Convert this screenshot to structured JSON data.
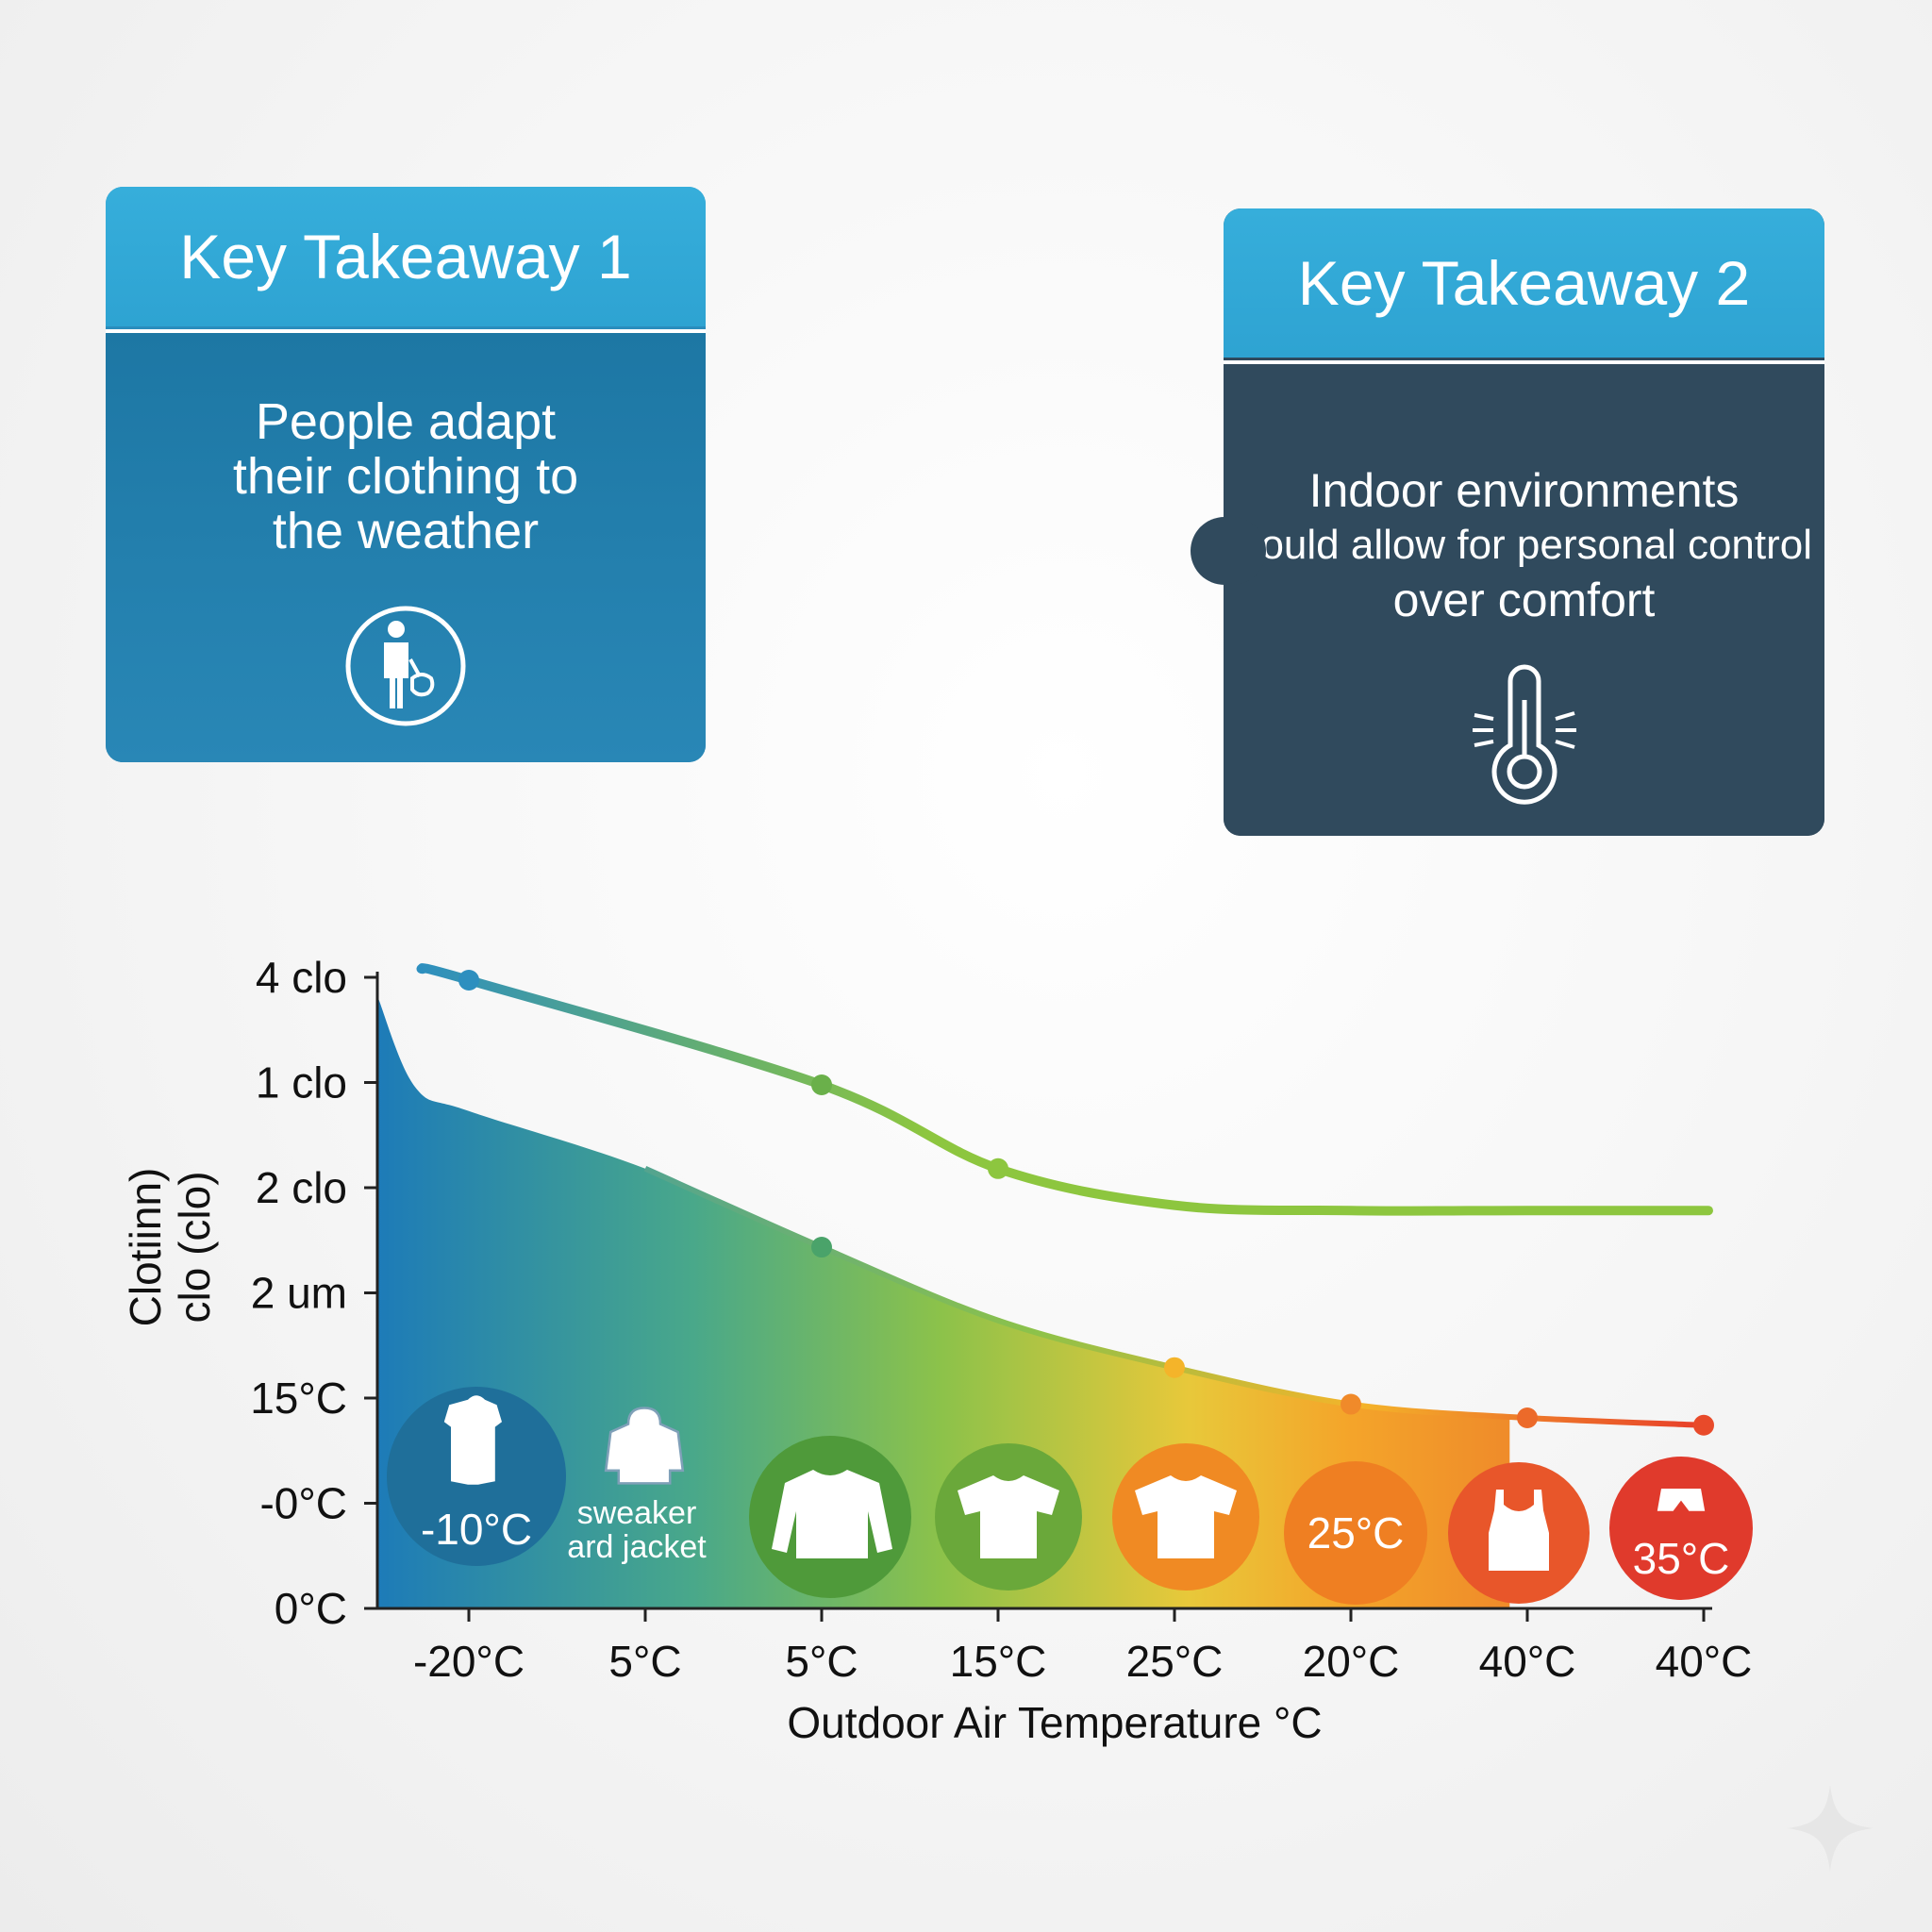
{
  "cards": [
    {
      "title": "Key Takeaway 1",
      "lines": [
        "People adapt",
        "their clothing to",
        "the weather"
      ],
      "icon": "person-with-bag-icon",
      "header_color": "#33aad8",
      "body_color": "#2080ad"
    },
    {
      "title": "Key Takeaway 2",
      "lines": [
        "Indoor environments",
        "should allow for personal control",
        "over comfort"
      ],
      "icon": "thermometer-icon",
      "header_color": "#33aad8",
      "body_color": "#304a5d"
    }
  ],
  "chart_data": {
    "type": "area",
    "title": "",
    "xlabel": "Outdoor Air Temperature °C",
    "ylabel_lines": [
      "Clotiinn)",
      "clo (clo)"
    ],
    "x_tick_labels": [
      "-20°C",
      "5°C",
      "5°C",
      "15°C",
      "25°C",
      "20°C",
      "40°C",
      "40°C"
    ],
    "y_tick_labels": [
      "4 clo",
      "1 clo",
      "2 clo",
      "2 um",
      "15°C",
      "-0°C",
      "0°C"
    ],
    "x": [
      0,
      1,
      2,
      3,
      4,
      5,
      6,
      7
    ],
    "series": [
      {
        "name": "",
        "values": [
          6.0,
          null,
          5.0,
          4.2,
          3.85,
          3.8,
          3.8,
          3.8
        ],
        "start_extension": -0.27,
        "color_start": "#2d8fbf",
        "color_end": "#8dc63f"
      },
      {
        "name": "",
        "values": [
          4.75,
          4.2,
          3.45,
          2.75,
          2.3,
          1.95,
          1.82,
          1.75
        ],
        "start_value_at_axis": 5.85,
        "fill": true,
        "fill_end_x": 5.9,
        "marker_points": [
          2,
          4,
          5,
          6,
          7
        ]
      }
    ],
    "grid": false,
    "legend": "none"
  },
  "clothing_circles": [
    {
      "icon": "long-coat-icon",
      "label": "-10°C",
      "color": "#1f6f9a"
    },
    {
      "icon": "hooded-jacket-icon",
      "label": "sweaker ard jacket",
      "color": "none"
    },
    {
      "icon": "long-sleeve-shirt-icon",
      "label": "",
      "color": "#4f9a3a"
    },
    {
      "icon": "t-shirt-icon",
      "label": "",
      "color": "#6aa83a"
    },
    {
      "icon": "t-shirt-icon",
      "label": "",
      "color": "#f08a23"
    },
    {
      "icon": "",
      "label": "25°C",
      "color": "#ef7f22"
    },
    {
      "icon": "tank-top-icon",
      "label": "",
      "color": "#e8562a"
    },
    {
      "icon": "shorts-icon",
      "label": "35°C",
      "color": "#e03a2c"
    }
  ]
}
